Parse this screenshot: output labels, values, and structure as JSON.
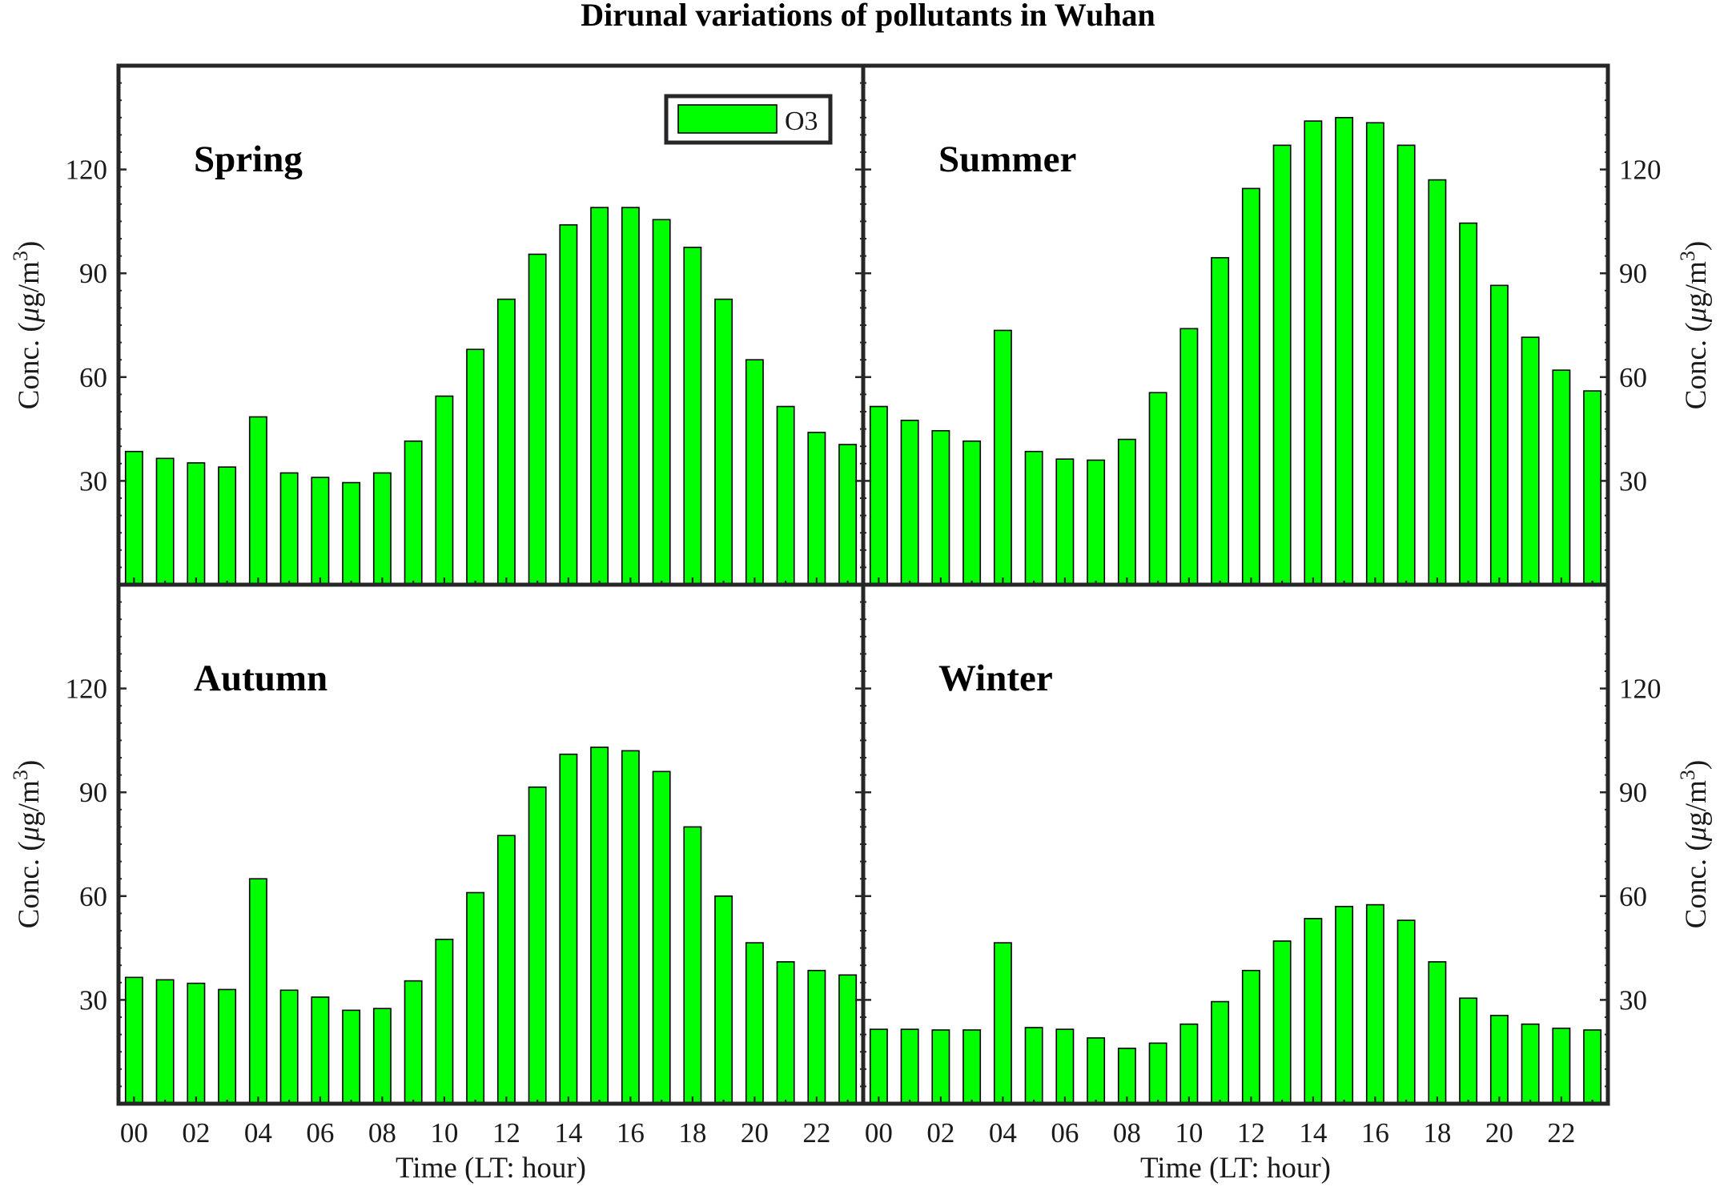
{
  "title": "Dirunal variations of pollutants in Wuhan",
  "legend": {
    "label": "O3",
    "placement": "top-right of first panel"
  },
  "colors": {
    "bar": "#00ff00",
    "bar_edge": "#000000",
    "frame": "#262626",
    "text": "#1a1a1a"
  },
  "shared": {
    "xlabel": "Time (LT: hour)",
    "ylabel_prefix": "Conc. (",
    "ylabel_mu": "μ",
    "ylabel_unit": "g/m",
    "ylabel_sup": "3",
    "ylabel_suffix": ")",
    "x_tick_labels": [
      "00",
      "02",
      "04",
      "06",
      "08",
      "10",
      "12",
      "14",
      "16",
      "18",
      "20",
      "22"
    ],
    "y_tick_labels": [
      "30",
      "60",
      "90",
      "120"
    ]
  },
  "chart_data": [
    {
      "type": "bar",
      "panel": "Spring",
      "x": [
        0,
        1,
        2,
        3,
        4,
        5,
        6,
        7,
        8,
        9,
        10,
        11,
        12,
        13,
        14,
        15,
        16,
        17,
        18,
        19,
        20,
        21,
        22,
        23
      ],
      "series": [
        {
          "name": "O3",
          "values": [
            38.5,
            36.5,
            35.2,
            34,
            48.5,
            32.3,
            31,
            29.5,
            32.3,
            41.5,
            54.5,
            68,
            82.5,
            95.5,
            104,
            109,
            109,
            105.5,
            97.5,
            82.5,
            65,
            51.5,
            44,
            40.5
          ]
        }
      ],
      "xlabel": "",
      "ylabel": "Conc. (μg/m3)",
      "xlim": [
        -0.5,
        23.5
      ],
      "ylim": [
        0,
        150
      ],
      "grid": false
    },
    {
      "type": "bar",
      "panel": "Summer",
      "x": [
        0,
        1,
        2,
        3,
        4,
        5,
        6,
        7,
        8,
        9,
        10,
        11,
        12,
        13,
        14,
        15,
        16,
        17,
        18,
        19,
        20,
        21,
        22,
        23
      ],
      "series": [
        {
          "name": "O3",
          "values": [
            51.5,
            47.5,
            44.5,
            41.5,
            73.5,
            38.5,
            36.3,
            36,
            42,
            55.5,
            74,
            94.5,
            114.5,
            127,
            134,
            135,
            133.5,
            127,
            117,
            104.5,
            86.5,
            71.5,
            62,
            56
          ]
        }
      ],
      "xlabel": "",
      "ylabel": "Conc. (μg/m3)",
      "xlim": [
        -0.5,
        23.5
      ],
      "ylim": [
        0,
        150
      ],
      "grid": false
    },
    {
      "type": "bar",
      "panel": "Autumn",
      "x": [
        0,
        1,
        2,
        3,
        4,
        5,
        6,
        7,
        8,
        9,
        10,
        11,
        12,
        13,
        14,
        15,
        16,
        17,
        18,
        19,
        20,
        21,
        22,
        23
      ],
      "series": [
        {
          "name": "O3",
          "values": [
            36.5,
            35.8,
            34.8,
            33,
            65,
            32.8,
            30.8,
            27,
            27.5,
            35.5,
            47.5,
            61,
            77.5,
            91.5,
            101,
            103,
            102,
            96,
            80,
            60,
            46.5,
            41,
            38.5,
            37.2
          ]
        }
      ],
      "xlabel": "Time (LT: hour)",
      "ylabel": "Conc. (μg/m3)",
      "xlim": [
        -0.5,
        23.5
      ],
      "ylim": [
        0,
        150
      ],
      "grid": false
    },
    {
      "type": "bar",
      "panel": "Winter",
      "x": [
        0,
        1,
        2,
        3,
        4,
        5,
        6,
        7,
        8,
        9,
        10,
        11,
        12,
        13,
        14,
        15,
        16,
        17,
        18,
        19,
        20,
        21,
        22,
        23
      ],
      "series": [
        {
          "name": "O3",
          "values": [
            21.5,
            21.5,
            21.3,
            21.3,
            46.5,
            22,
            21.5,
            19,
            16,
            17.5,
            23,
            29.5,
            38.5,
            47,
            53.5,
            57,
            57.5,
            53,
            41,
            30.5,
            25.5,
            23,
            21.8,
            21.3
          ]
        }
      ],
      "xlabel": "Time (LT: hour)",
      "ylabel": "Conc. (μg/m3)",
      "xlim": [
        -0.5,
        23.5
      ],
      "ylim": [
        0,
        150
      ],
      "grid": false
    }
  ]
}
